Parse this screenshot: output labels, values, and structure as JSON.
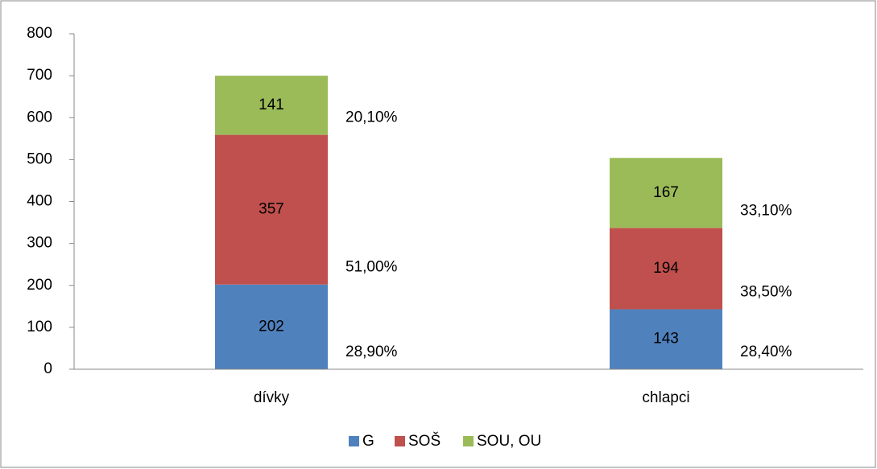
{
  "chart_data": {
    "type": "stacked_bar",
    "categories": [
      "dívky",
      "chlapci"
    ],
    "series": [
      {
        "name": "G",
        "color": "#4f81bd",
        "values": [
          202,
          143
        ],
        "shares": [
          "28,90%",
          "28,40%"
        ]
      },
      {
        "name": "SOŠ",
        "color": "#c0504d",
        "values": [
          357,
          194
        ],
        "shares": [
          "51,00%",
          "38,50%"
        ]
      },
      {
        "name": "SOU, OU",
        "color": "#9bbb59",
        "values": [
          141,
          167
        ],
        "shares": [
          "20,10%",
          "33,10%"
        ]
      }
    ],
    "ylim": [
      0,
      800
    ],
    "yticks": [
      0,
      100,
      200,
      300,
      400,
      500,
      600,
      700,
      800
    ],
    "grid": false,
    "legend": "bottom"
  }
}
